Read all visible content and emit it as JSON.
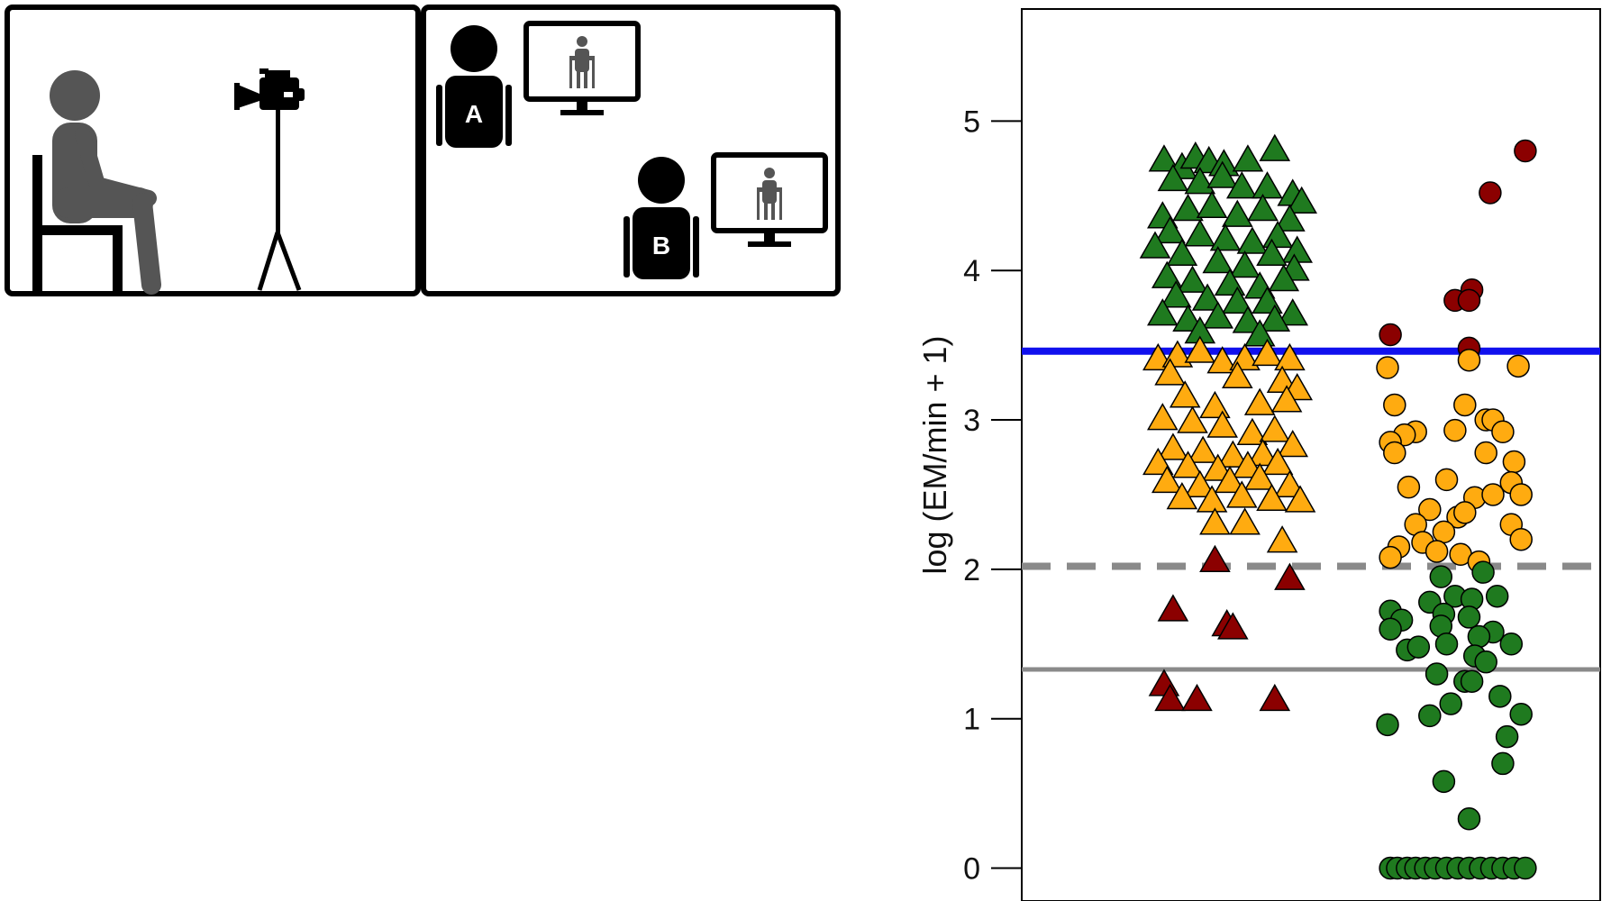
{
  "panels": {
    "left": {
      "subject": "seated-person",
      "camera": "video-camera-on-tripod"
    },
    "right": {
      "observer_a_label": "A",
      "observer_b_label": "B",
      "screen_content": "person-standing-with-walker"
    }
  },
  "chart_data": {
    "type": "scatter",
    "ylabel": "log (EM/min + 1)",
    "xlabel": "",
    "ylim": [
      -0.22,
      5.75
    ],
    "yticks": [
      0,
      1,
      2,
      3,
      4,
      5
    ],
    "grid": false,
    "groups": [
      "triangles",
      "circles"
    ],
    "reference_lines": [
      {
        "y": 3.46,
        "style": "solid",
        "color": "#1010ee"
      },
      {
        "y": 2.02,
        "style": "dashed",
        "color": "#8a8a8a"
      },
      {
        "y": 1.33,
        "style": "solid",
        "color": "#8a8a8a"
      }
    ],
    "colors": {
      "green": "#1f7a1f",
      "orange": "#ffab10",
      "red": "#8b0000"
    },
    "series": [
      {
        "group": "triangles",
        "marker": "triangle",
        "color": "green",
        "points": [
          [
            0.06,
            4.73
          ],
          [
            0.18,
            4.68
          ],
          [
            0.27,
            4.75
          ],
          [
            0.36,
            4.72
          ],
          [
            0.46,
            4.7
          ],
          [
            0.62,
            4.73
          ],
          [
            0.8,
            4.8
          ],
          [
            0.12,
            4.6
          ],
          [
            0.3,
            4.58
          ],
          [
            0.45,
            4.62
          ],
          [
            0.58,
            4.55
          ],
          [
            0.75,
            4.55
          ],
          [
            0.92,
            4.5
          ],
          [
            0.98,
            4.45
          ],
          [
            0.05,
            4.35
          ],
          [
            0.22,
            4.4
          ],
          [
            0.38,
            4.42
          ],
          [
            0.55,
            4.36
          ],
          [
            0.72,
            4.4
          ],
          [
            0.9,
            4.33
          ],
          [
            0.1,
            4.25
          ],
          [
            0.3,
            4.23
          ],
          [
            0.47,
            4.2
          ],
          [
            0.65,
            4.18
          ],
          [
            0.82,
            4.22
          ],
          [
            0.95,
            4.12
          ],
          [
            0.0,
            4.15
          ],
          [
            0.18,
            4.1
          ],
          [
            0.42,
            4.05
          ],
          [
            0.6,
            4.02
          ],
          [
            0.78,
            4.1
          ],
          [
            0.93,
            4.0
          ],
          [
            0.08,
            3.95
          ],
          [
            0.25,
            3.92
          ],
          [
            0.5,
            3.9
          ],
          [
            0.7,
            3.88
          ],
          [
            0.86,
            3.93
          ],
          [
            0.14,
            3.82
          ],
          [
            0.35,
            3.8
          ],
          [
            0.55,
            3.78
          ],
          [
            0.75,
            3.78
          ],
          [
            0.92,
            3.7
          ],
          [
            0.05,
            3.7
          ],
          [
            0.22,
            3.66
          ],
          [
            0.42,
            3.68
          ],
          [
            0.62,
            3.65
          ],
          [
            0.8,
            3.66
          ],
          [
            0.3,
            3.58
          ],
          [
            0.7,
            3.56
          ]
        ]
      },
      {
        "group": "triangles",
        "marker": "triangle",
        "color": "orange",
        "points": [
          [
            0.02,
            3.4
          ],
          [
            0.15,
            3.42
          ],
          [
            0.3,
            3.45
          ],
          [
            0.45,
            3.38
          ],
          [
            0.6,
            3.4
          ],
          [
            0.75,
            3.43
          ],
          [
            0.9,
            3.4
          ],
          [
            0.1,
            3.3
          ],
          [
            0.55,
            3.28
          ],
          [
            0.85,
            3.25
          ],
          [
            0.95,
            3.2
          ],
          [
            0.2,
            3.15
          ],
          [
            0.4,
            3.08
          ],
          [
            0.7,
            3.1
          ],
          [
            0.88,
            3.12
          ],
          [
            0.05,
            3.0
          ],
          [
            0.25,
            2.98
          ],
          [
            0.45,
            2.95
          ],
          [
            0.65,
            2.9
          ],
          [
            0.8,
            2.92
          ],
          [
            0.12,
            2.8
          ],
          [
            0.32,
            2.78
          ],
          [
            0.52,
            2.75
          ],
          [
            0.72,
            2.76
          ],
          [
            0.92,
            2.82
          ],
          [
            0.02,
            2.7
          ],
          [
            0.22,
            2.68
          ],
          [
            0.42,
            2.66
          ],
          [
            0.62,
            2.68
          ],
          [
            0.82,
            2.7
          ],
          [
            0.08,
            2.58
          ],
          [
            0.3,
            2.55
          ],
          [
            0.5,
            2.58
          ],
          [
            0.7,
            2.6
          ],
          [
            0.9,
            2.55
          ],
          [
            0.18,
            2.47
          ],
          [
            0.38,
            2.45
          ],
          [
            0.58,
            2.48
          ],
          [
            0.78,
            2.46
          ],
          [
            0.97,
            2.45
          ],
          [
            0.4,
            2.3
          ],
          [
            0.6,
            2.3
          ],
          [
            0.85,
            2.18
          ]
        ]
      },
      {
        "group": "triangles",
        "marker": "triangle",
        "color": "red",
        "points": [
          [
            0.4,
            2.05
          ],
          [
            0.9,
            1.93
          ],
          [
            0.12,
            1.72
          ],
          [
            0.48,
            1.62
          ],
          [
            0.52,
            1.6
          ],
          [
            0.06,
            1.22
          ],
          [
            0.1,
            1.12
          ],
          [
            0.28,
            1.12
          ],
          [
            0.8,
            1.12
          ]
        ]
      },
      {
        "group": "circles",
        "marker": "circle",
        "color": "red",
        "points": [
          [
            0.98,
            4.8
          ],
          [
            0.73,
            4.52
          ],
          [
            0.6,
            3.87
          ],
          [
            0.48,
            3.8
          ],
          [
            0.58,
            3.8
          ],
          [
            0.02,
            3.57
          ],
          [
            0.58,
            3.48
          ]
        ]
      },
      {
        "group": "circles",
        "marker": "circle",
        "color": "orange",
        "points": [
          [
            0.0,
            3.35
          ],
          [
            0.58,
            3.4
          ],
          [
            0.93,
            3.36
          ],
          [
            0.05,
            3.1
          ],
          [
            0.55,
            3.1
          ],
          [
            0.7,
            3.0
          ],
          [
            0.75,
            3.0
          ],
          [
            0.48,
            2.93
          ],
          [
            0.2,
            2.92
          ],
          [
            0.82,
            2.92
          ],
          [
            0.12,
            2.9
          ],
          [
            0.02,
            2.85
          ],
          [
            0.05,
            2.78
          ],
          [
            0.7,
            2.78
          ],
          [
            0.9,
            2.72
          ],
          [
            0.15,
            2.55
          ],
          [
            0.42,
            2.6
          ],
          [
            0.88,
            2.58
          ],
          [
            0.95,
            2.5
          ],
          [
            0.62,
            2.48
          ],
          [
            0.75,
            2.5
          ],
          [
            0.3,
            2.4
          ],
          [
            0.5,
            2.35
          ],
          [
            0.55,
            2.38
          ],
          [
            0.2,
            2.3
          ],
          [
            0.4,
            2.25
          ],
          [
            0.88,
            2.3
          ],
          [
            0.08,
            2.15
          ],
          [
            0.25,
            2.18
          ],
          [
            0.35,
            2.12
          ],
          [
            0.02,
            2.08
          ],
          [
            0.52,
            2.1
          ],
          [
            0.65,
            2.05
          ],
          [
            0.95,
            2.2
          ]
        ]
      },
      {
        "group": "circles",
        "marker": "circle",
        "color": "green",
        "points": [
          [
            0.38,
            1.95
          ],
          [
            0.68,
            1.98
          ],
          [
            0.48,
            1.82
          ],
          [
            0.3,
            1.78
          ],
          [
            0.6,
            1.8
          ],
          [
            0.78,
            1.82
          ],
          [
            0.02,
            1.72
          ],
          [
            0.4,
            1.7
          ],
          [
            0.58,
            1.68
          ],
          [
            0.1,
            1.66
          ],
          [
            0.38,
            1.62
          ],
          [
            0.75,
            1.58
          ],
          [
            0.02,
            1.6
          ],
          [
            0.65,
            1.55
          ],
          [
            0.88,
            1.5
          ],
          [
            0.42,
            1.5
          ],
          [
            0.14,
            1.46
          ],
          [
            0.22,
            1.48
          ],
          [
            0.62,
            1.42
          ],
          [
            0.7,
            1.38
          ],
          [
            0.35,
            1.3
          ],
          [
            0.55,
            1.25
          ],
          [
            0.6,
            1.25
          ],
          [
            0.8,
            1.15
          ],
          [
            0.45,
            1.1
          ],
          [
            0.3,
            1.02
          ],
          [
            0.95,
            1.03
          ],
          [
            0.0,
            0.96
          ],
          [
            0.85,
            0.88
          ],
          [
            0.82,
            0.7
          ],
          [
            0.4,
            0.58
          ],
          [
            0.58,
            0.33
          ],
          [
            0.02,
            0.0
          ],
          [
            0.07,
            0.0
          ],
          [
            0.14,
            0.0
          ],
          [
            0.2,
            0.0
          ],
          [
            0.27,
            0.0
          ],
          [
            0.34,
            0.0
          ],
          [
            0.42,
            0.0
          ],
          [
            0.5,
            0.0
          ],
          [
            0.58,
            0.0
          ],
          [
            0.66,
            0.0
          ],
          [
            0.74,
            0.0
          ],
          [
            0.82,
            0.0
          ],
          [
            0.9,
            0.0
          ],
          [
            0.98,
            0.0
          ]
        ]
      }
    ]
  }
}
